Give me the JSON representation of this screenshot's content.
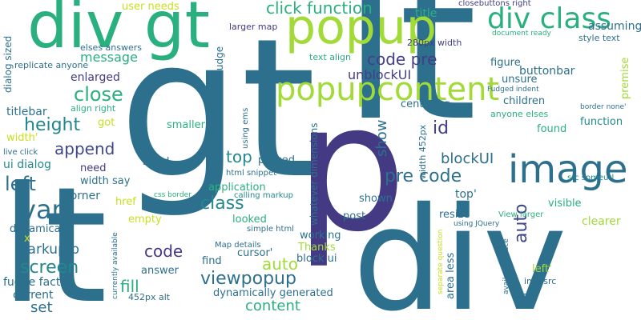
{
  "words": [
    {
      "text": "gt",
      "color": "#2d708e"
    },
    {
      "text": "lt",
      "color": "#2d708e"
    },
    {
      "text": "div",
      "color": "#2d708e"
    },
    {
      "text": "lt",
      "color": "#2d708e"
    },
    {
      "text": "p",
      "color": "#443a83"
    },
    {
      "text": "div gt",
      "color": "#2ab07f"
    },
    {
      "text": "popup",
      "color": "#a2da37"
    },
    {
      "text": "image",
      "color": "#2d708e"
    },
    {
      "text": "popupcontent",
      "color": "#a2da37"
    },
    {
      "text": "div class",
      "color": "#2ab07f"
    },
    {
      "text": "click function",
      "color": "#2ab07f"
    },
    {
      "text": "code pre",
      "color": "#433e85"
    },
    {
      "text": "message",
      "color": "#29af7f"
    },
    {
      "text": "close",
      "color": "#2ab07f"
    },
    {
      "text": "height",
      "color": "#23888e"
    },
    {
      "text": "append",
      "color": "#3f4889"
    },
    {
      "text": "left",
      "color": "#2d708e"
    },
    {
      "text": "var",
      "color": "#2d708e"
    },
    {
      "text": "class",
      "color": "#23888e"
    },
    {
      "text": "screen",
      "color": "#23888e"
    },
    {
      "text": "viewpopup",
      "color": "#2d708e"
    },
    {
      "text": "auto",
      "color": "#a2da37"
    },
    {
      "text": "auto",
      "color": "#3f4889"
    },
    {
      "text": "pre code",
      "color": "#2d708e"
    },
    {
      "text": "blockUI",
      "color": "#2d708e"
    },
    {
      "text": "top",
      "color": "#23888e"
    },
    {
      "text": "show",
      "color": "#2d708e"
    },
    {
      "text": "id",
      "color": "#433e85"
    },
    {
      "text": "unblockUI",
      "color": "#433e85"
    },
    {
      "text": "code",
      "color": "#443a83"
    },
    {
      "text": "content",
      "color": "#2ab07f"
    },
    {
      "text": "fill",
      "color": "#2ab07f"
    },
    {
      "text": "set",
      "color": "#2d708e"
    },
    {
      "text": "markup p",
      "color": "#2d708e"
    },
    {
      "text": "fudge factor",
      "color": "#2d708e"
    },
    {
      "text": "current",
      "color": "#2d708e"
    },
    {
      "text": "dynamically",
      "color": "#2d708e"
    },
    {
      "text": "corner",
      "color": "#2d708e"
    },
    {
      "text": "ui dialog",
      "color": "#23888e"
    },
    {
      "text": "width'",
      "color": "#c8e020"
    },
    {
      "text": "titlebar",
      "color": "#2d708e"
    },
    {
      "text": "enlarged",
      "color": "#443a83"
    },
    {
      "text": "user needs",
      "color": "#c8e020"
    },
    {
      "text": "title",
      "color": "#2ab07f"
    },
    {
      "text": "closebuttons right",
      "color": "#433e85"
    },
    {
      "text": "larger map",
      "color": "#443a83"
    },
    {
      "text": "280px width",
      "color": "#433e85"
    },
    {
      "text": "document ready",
      "color": "#2ab07f"
    },
    {
      "text": "style text",
      "color": "#2d708e"
    },
    {
      "text": "assuming",
      "color": "#2d708e"
    },
    {
      "text": "buttonbar",
      "color": "#2d708e"
    },
    {
      "text": "figure",
      "color": "#2d708e"
    },
    {
      "text": "text align",
      "color": "#2ab07f"
    },
    {
      "text": "elses answers",
      "color": "#2d708e"
    },
    {
      "text": "replicate anyone",
      "color": "#2d708e"
    },
    {
      "text": "Fudged indent",
      "color": "#2d708e"
    },
    {
      "text": "unsure",
      "color": "#2d708e"
    },
    {
      "text": "children",
      "color": "#2d708e"
    },
    {
      "text": "centering",
      "color": "#2d708e"
    },
    {
      "text": "anyone elses",
      "color": "#2ab07f"
    },
    {
      "text": "align right",
      "color": "#2ab07f"
    },
    {
      "text": "got",
      "color": "#c8e020"
    },
    {
      "text": "smaller",
      "color": "#2ab07f"
    },
    {
      "text": "found",
      "color": "#2ab07f"
    },
    {
      "text": "function",
      "color": "#23888e"
    },
    {
      "text": "border none'",
      "color": "#2d708e"
    },
    {
      "text": "sized",
      "color": "#2d708e"
    },
    {
      "text": "passed",
      "color": "#2d708e"
    },
    {
      "text": "need",
      "color": "#443a83"
    },
    {
      "text": "width say",
      "color": "#2d708e"
    },
    {
      "text": "html snippet",
      "color": "#2d708e"
    },
    {
      "text": "application",
      "color": "#2ab07f"
    },
    {
      "text": "src someurl",
      "color": "#23888e"
    },
    {
      "text": "live click",
      "color": "#2d708e"
    },
    {
      "text": "css border",
      "color": "#2ab07f"
    },
    {
      "text": "calling markup",
      "color": "#23888e"
    },
    {
      "text": "top'",
      "color": "#2d708e"
    },
    {
      "text": "visible",
      "color": "#2ab07f"
    },
    {
      "text": "shown",
      "color": "#2d708e"
    },
    {
      "text": "href",
      "color": "#c8e020"
    },
    {
      "text": "empty",
      "color": "#c8e020"
    },
    {
      "text": "looked",
      "color": "#2ab07f"
    },
    {
      "text": "View larger",
      "color": "#2ab07f"
    },
    {
      "text": "resize",
      "color": "#2d708e"
    },
    {
      "text": "clearer",
      "color": "#a2da37"
    },
    {
      "text": "post",
      "color": "#2d708e"
    },
    {
      "text": "working",
      "color": "#2d708e"
    },
    {
      "text": "simple html",
      "color": "#2d708e"
    },
    {
      "text": "Map details",
      "color": "#2d708e"
    },
    {
      "text": "Thanks",
      "color": "#a2da37"
    },
    {
      "text": "block ui",
      "color": "#2d708e"
    },
    {
      "text": "left'",
      "color": "#a2da37"
    },
    {
      "text": "using JQuery",
      "color": "#2d708e"
    },
    {
      "text": "find",
      "color": "#2d708e"
    },
    {
      "text": "cursor'",
      "color": "#2d708e"
    },
    {
      "text": "answer",
      "color": "#2d708e"
    },
    {
      "text": "img src",
      "color": "#2d708e"
    },
    {
      "text": "dynamically generated",
      "color": "#2d708e"
    },
    {
      "text": "css",
      "color": "#2d708e"
    },
    {
      "text": "452px alt",
      "color": "#2d708e"
    },
    {
      "text": "x",
      "color": "#c8e020"
    },
    {
      "text": "dialog sized",
      "color": "#2d708e"
    },
    {
      "text": "hardcoded fudge",
      "color": "#2d708e"
    },
    {
      "text": "using ems",
      "color": "#2d708e"
    },
    {
      "text": "whatever dimensions",
      "color": "#2d708e"
    },
    {
      "text": "width 452px",
      "color": "#2d708e"
    },
    {
      "text": "premise",
      "color": "#a2da37"
    },
    {
      "text": "currently available",
      "color": "#2d708e"
    },
    {
      "text": "separate question",
      "color": "#c8e020"
    },
    {
      "text": "area less",
      "color": "#2d708e"
    },
    {
      "text": "available space",
      "color": "#2d708e"
    }
  ]
}
